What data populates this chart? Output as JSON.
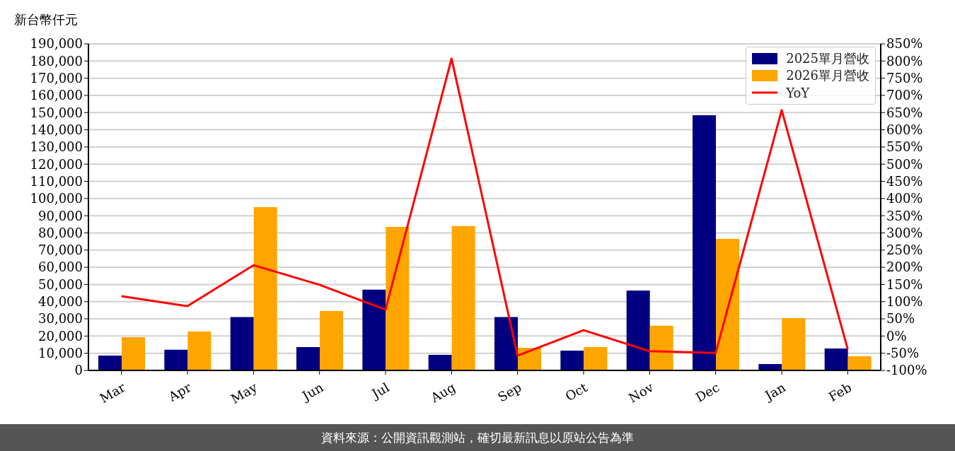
{
  "chart_data": {
    "type": "bar",
    "ylabel": "新台幣仟元",
    "categories": [
      "Mar",
      "Apr",
      "May",
      "Jun",
      "Jul",
      "Aug",
      "Sep",
      "Oct",
      "Nov",
      "Dec",
      "Jan",
      "Feb"
    ],
    "series": [
      {
        "name": "2025單月營收",
        "color": "#000080",
        "values": [
          8600,
          12000,
          31000,
          13600,
          47000,
          9000,
          31000,
          11500,
          46500,
          148500,
          3700,
          12700
        ]
      },
      {
        "name": "2026單月營收",
        "color": "#ffa500",
        "values": [
          19300,
          22600,
          95000,
          34500,
          83500,
          84000,
          13200,
          13600,
          26000,
          76500,
          30400,
          8200
        ]
      },
      {
        "name": "YoY",
        "type": "line",
        "axis": "y2",
        "color": "#ff0000",
        "values": [
          116,
          87,
          206,
          149,
          77,
          807,
          -57,
          17,
          -44,
          -49,
          657,
          -38
        ]
      }
    ],
    "ylim": [
      0,
      190000
    ],
    "yticks": [
      0,
      {
        "value": 10000,
        "label": "10,000"
      },
      {
        "value": 20000,
        "label": "20,000"
      },
      {
        "value": 30000,
        "label": "30,000"
      },
      {
        "value": 40000,
        "label": "40,000"
      },
      {
        "value": 50000,
        "label": "50,000"
      },
      {
        "value": 60000,
        "label": "60,000"
      },
      {
        "value": 70000,
        "label": "70,000"
      },
      {
        "value": 80000,
        "label": "80,000"
      },
      {
        "value": 90000,
        "label": "90,000"
      },
      {
        "value": 100000,
        "label": "100,000"
      },
      {
        "value": 110000,
        "label": "110,000"
      },
      {
        "value": 120000,
        "label": "120,000"
      },
      {
        "value": 130000,
        "label": "130,000"
      },
      {
        "value": 140000,
        "label": "140,000"
      },
      {
        "value": 150000,
        "label": "150,000"
      },
      {
        "value": 160000,
        "label": "160,000"
      },
      {
        "value": 170000,
        "label": "170,000"
      },
      {
        "value": 180000,
        "label": "180,000"
      },
      {
        "value": 190000,
        "label": "190,000"
      }
    ],
    "y2lim": [
      -100,
      850
    ],
    "y2ticks": [
      {
        "value": -100,
        "label": "-100%"
      },
      {
        "value": -50,
        "label": "-50%"
      },
      {
        "value": 0,
        "label": "0%"
      },
      {
        "value": 50,
        "label": "50%"
      },
      {
        "value": 100,
        "label": "100%"
      },
      {
        "value": 150,
        "label": "150%"
      },
      {
        "value": 200,
        "label": "200%"
      },
      {
        "value": 250,
        "label": "250%"
      },
      {
        "value": 300,
        "label": "300%"
      },
      {
        "value": 350,
        "label": "350%"
      },
      {
        "value": 400,
        "label": "400%"
      },
      {
        "value": 450,
        "label": "450%"
      },
      {
        "value": 500,
        "label": "500%"
      },
      {
        "value": 550,
        "label": "550%"
      },
      {
        "value": 600,
        "label": "600%"
      },
      {
        "value": 650,
        "label": "650%"
      },
      {
        "value": 700,
        "label": "700%"
      },
      {
        "value": 750,
        "label": "750%"
      },
      {
        "value": 800,
        "label": "800%"
      },
      {
        "value": 850,
        "label": "850%"
      }
    ],
    "grid": "y",
    "legend": "top right",
    "marker": "none",
    "line_style": "solid",
    "annotations": [
      "資料來源：公開資訊觀測站，確切最新訊息以原站公告為準"
    ]
  }
}
